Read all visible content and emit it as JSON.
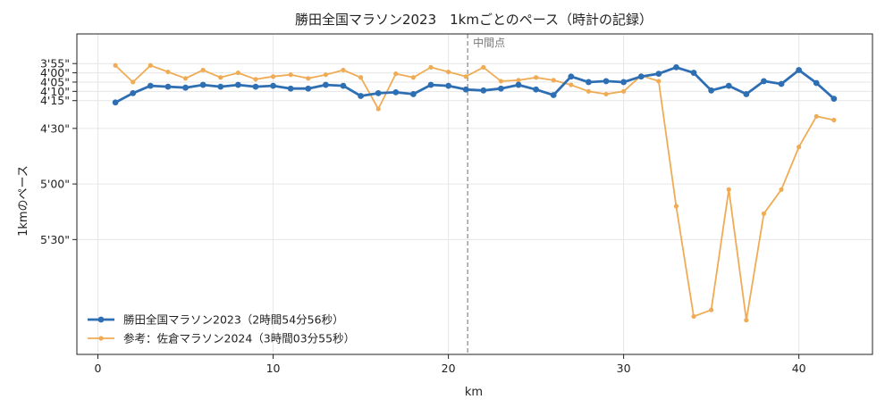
{
  "chart_data": {
    "type": "line",
    "title": "勝田全国マラソン2023　1kmごとのペース（時計の記録）",
    "xlabel": "km",
    "ylabel": "1kmのペース",
    "xlim": [
      -1.2,
      44.2
    ],
    "ylim_seconds": [
      219,
      392
    ],
    "y_inverted": true,
    "x_ticks": [
      0,
      10,
      20,
      30,
      40
    ],
    "x_tick_labels": [
      "0",
      "10",
      "20",
      "30",
      "40"
    ],
    "y_ticks": [
      235,
      240,
      245,
      250,
      255,
      270,
      300,
      330
    ],
    "y_tick_labels": [
      "3'55\"",
      "4'00\"",
      "4'05\"",
      "4'10\"",
      "4'15\"",
      "4'30\"",
      "5'00\"",
      "5'30\""
    ],
    "grid": true,
    "legend_position": "lower-left",
    "annotation": {
      "x": 21.1,
      "text": "中間点"
    },
    "x": [
      1,
      2,
      3,
      4,
      5,
      6,
      7,
      8,
      9,
      10,
      11,
      12,
      13,
      14,
      15,
      16,
      17,
      18,
      19,
      20,
      21,
      22,
      23,
      24,
      25,
      26,
      27,
      28,
      29,
      30,
      31,
      32,
      33,
      34,
      35,
      36,
      37,
      38,
      39,
      40,
      41,
      42
    ],
    "series": [
      {
        "name": "勝田全国マラソン2023（2時間54分56秒）",
        "color": "#2e6fb4",
        "style": "thick",
        "values": [
          256,
          251,
          247,
          247.5,
          248,
          246.5,
          247.5,
          246.5,
          247.5,
          247,
          248.5,
          248.5,
          246.5,
          247,
          252.5,
          251,
          250.5,
          251.5,
          246.5,
          247,
          249,
          249.5,
          248.5,
          246.5,
          249,
          252,
          242,
          245,
          244.5,
          245,
          242,
          240.5,
          237,
          240,
          249.5,
          247,
          251.5,
          244.5,
          246,
          238.5,
          245.5,
          254
        ]
      },
      {
        "name": "参考：佐倉マラソン2024（3時間03分55秒）",
        "color": "#f0ab55",
        "style": "thin",
        "values": [
          236,
          245,
          236,
          239.5,
          243,
          238.5,
          242.5,
          240,
          243.5,
          242,
          241,
          243,
          241,
          238.5,
          242.5,
          259.5,
          240.5,
          242.5,
          237,
          239.5,
          242,
          237,
          244.5,
          244,
          242.5,
          244,
          246.5,
          250,
          251.5,
          250,
          241.5,
          244.5,
          312,
          371.5,
          368,
          303,
          373.5,
          316,
          303,
          280,
          263.5,
          265.5
        ]
      }
    ]
  }
}
